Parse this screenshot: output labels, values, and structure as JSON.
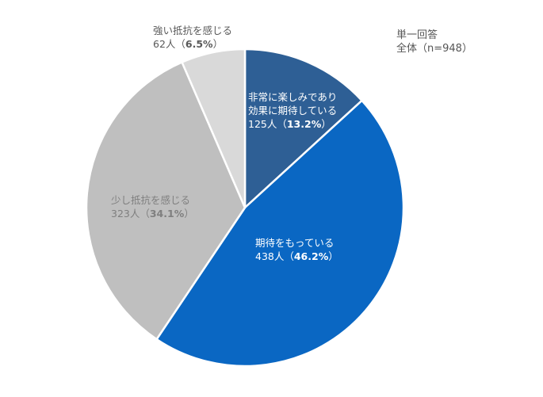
{
  "note": {
    "line1": "単一回答",
    "line2": "全体（n=948）"
  },
  "chart_data": {
    "type": "pie",
    "start_angle_deg": 0,
    "direction": "clockwise",
    "slices": [
      {
        "label_lines": [
          "非常に楽しみであり",
          "効果に期待している"
        ],
        "count_text": "125人（",
        "pct_text": "13.2%",
        "close_text": "）",
        "count": 125,
        "value": 13.2,
        "color": "#2e5f95",
        "label_color": "#ffffff"
      },
      {
        "label_lines": [
          "期待をもっている"
        ],
        "count_text": "438人（",
        "pct_text": "46.2%",
        "close_text": "）",
        "count": 438,
        "value": 46.2,
        "color": "#0a67c3",
        "label_color": "#ffffff"
      },
      {
        "label_lines": [
          "少し抵抗を感じる"
        ],
        "count_text": "323人（",
        "pct_text": "34.1%",
        "close_text": "）",
        "count": 323,
        "value": 34.1,
        "color": "#bfbfbf",
        "label_color": "#7f7f7f"
      },
      {
        "label_lines": [
          "強い抵抗を感じる"
        ],
        "count_text": "62人（",
        "pct_text": "6.5%",
        "close_text": "）",
        "count": 62,
        "value": 6.5,
        "color": "#d9d9d9",
        "label_color": "#595959"
      }
    ]
  }
}
